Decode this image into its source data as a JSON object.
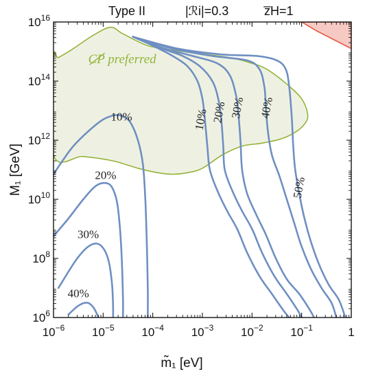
{
  "title": {
    "model": "Type II",
    "r_param": "|ℛi|=0.3",
    "z_param": "z̅H=1"
  },
  "colors": {
    "contour": "#6f8fc2",
    "cp_fill": "#eef1e2",
    "cp_border": "#94b33a",
    "excluded_fill": "#f6c9c3",
    "excluded_border": "#e25b45"
  },
  "chart_data": {
    "type": "contour",
    "xlabel": "m̃₁ [eV]",
    "ylabel": "M₁ [GeV]",
    "xscale": "log",
    "yscale": "log",
    "xlim": [
      1e-06,
      1
    ],
    "ylim": [
      1000000.0,
      1e+16
    ],
    "grid": false,
    "x_ticks": [
      {
        "value": 1e-06,
        "base": "10",
        "exp": "−6"
      },
      {
        "value": 1e-05,
        "base": "10",
        "exp": "−5"
      },
      {
        "value": 0.0001,
        "base": "10",
        "exp": "−4"
      },
      {
        "value": 0.001,
        "base": "10",
        "exp": "−3"
      },
      {
        "value": 0.01,
        "base": "10",
        "exp": "−2"
      },
      {
        "value": 0.1,
        "base": "10",
        "exp": "−1"
      },
      {
        "value": 1,
        "base": "1",
        "exp": ""
      }
    ],
    "y_ticks": [
      {
        "value": 1000000.0,
        "base": "10",
        "exp": "6"
      },
      {
        "value": 100000000.0,
        "base": "10",
        "exp": "8"
      },
      {
        "value": 10000000000.0,
        "base": "10",
        "exp": "10"
      },
      {
        "value": 1000000000000.0,
        "base": "10",
        "exp": "12"
      },
      {
        "value": 100000000000000.0,
        "base": "10",
        "exp": "14"
      },
      {
        "value": 1e+16,
        "base": "10",
        "exp": "16"
      }
    ],
    "regions": [
      {
        "name": "CP preferred",
        "label": "CP preferred",
        "label_at": [
          -5.3,
          14.6
        ],
        "points": [
          [
            -6.0,
            11.5
          ],
          [
            -5.4,
            11.45
          ],
          [
            -4.8,
            11.3
          ],
          [
            -4.3,
            11.05
          ],
          [
            -3.9,
            10.9
          ],
          [
            -3.6,
            10.85
          ],
          [
            -3.3,
            10.9
          ],
          [
            -3.0,
            11.05
          ],
          [
            -2.6,
            11.5
          ],
          [
            -2.2,
            11.8
          ],
          [
            -1.8,
            11.9
          ],
          [
            -1.4,
            12.05
          ],
          [
            -1.1,
            12.3
          ],
          [
            -0.92,
            12.6
          ],
          [
            -0.88,
            12.9
          ],
          [
            -1.0,
            13.4
          ],
          [
            -1.3,
            13.9
          ],
          [
            -1.7,
            14.4
          ],
          [
            -2.0,
            14.6
          ],
          [
            -2.4,
            14.78
          ],
          [
            -3.0,
            14.92
          ],
          [
            -3.6,
            15.05
          ],
          [
            -4.1,
            15.2
          ],
          [
            -4.6,
            15.6
          ],
          [
            -4.85,
            15.82
          ],
          [
            -5.2,
            15.55
          ],
          [
            -5.6,
            15.1
          ],
          [
            -5.9,
            14.8
          ],
          [
            -6.0,
            14.75
          ]
        ]
      },
      {
        "name": "excluded",
        "label": "",
        "points": [
          [
            -1.0,
            16.0
          ],
          [
            0.0,
            16.0
          ],
          [
            0.0,
            15.1
          ],
          [
            -0.7,
            15.7
          ]
        ]
      }
    ],
    "contours": [
      {
        "level": "10%",
        "label_at": [
          -4.63,
          12.8
        ],
        "points": [
          [
            -6.0,
            10.85
          ],
          [
            -5.8,
            11.35
          ],
          [
            -5.6,
            11.8
          ],
          [
            -5.3,
            12.3
          ],
          [
            -5.0,
            12.7
          ],
          [
            -4.75,
            12.85
          ],
          [
            -4.6,
            12.8
          ],
          [
            -4.45,
            12.6
          ],
          [
            -4.3,
            12.0
          ],
          [
            -4.2,
            11.2
          ],
          [
            -4.15,
            10.0
          ],
          [
            -4.12,
            8.5
          ],
          [
            -4.1,
            7.0
          ],
          [
            -4.1,
            6.0
          ]
        ]
      },
      {
        "level": "20%",
        "label_at": [
          -4.95,
          10.82
        ],
        "points": [
          [
            -6.0,
            8.75
          ],
          [
            -5.7,
            9.35
          ],
          [
            -5.4,
            10.0
          ],
          [
            -5.15,
            10.45
          ],
          [
            -4.95,
            10.55
          ],
          [
            -4.82,
            10.4
          ],
          [
            -4.72,
            9.9
          ],
          [
            -4.66,
            9.0
          ],
          [
            -4.62,
            7.8
          ],
          [
            -4.6,
            6.6
          ],
          [
            -4.6,
            6.0
          ]
        ]
      },
      {
        "level": "30%",
        "label_at": [
          -5.3,
          8.82
        ],
        "points": [
          [
            -5.9,
            7.0
          ],
          [
            -5.7,
            7.55
          ],
          [
            -5.5,
            8.05
          ],
          [
            -5.3,
            8.4
          ],
          [
            -5.12,
            8.5
          ],
          [
            -4.98,
            8.3
          ],
          [
            -4.88,
            7.85
          ],
          [
            -4.82,
            7.1
          ],
          [
            -4.8,
            6.4
          ],
          [
            -4.8,
            6.0
          ]
        ]
      },
      {
        "level": "40%",
        "label_at": [
          -5.5,
          6.82
        ],
        "points": [
          [
            -5.7,
            6.1
          ],
          [
            -5.5,
            6.4
          ],
          [
            -5.32,
            6.5
          ],
          [
            -5.2,
            6.35
          ],
          [
            -5.12,
            6.1
          ],
          [
            -5.1,
            6.0
          ]
        ]
      },
      {
        "level": "10%",
        "label_at": [
          -3.04,
          12.7
        ],
        "points": [
          [
            -4.4,
            15.5
          ],
          [
            -4.0,
            15.2
          ],
          [
            -3.6,
            14.85
          ],
          [
            -3.3,
            14.5
          ],
          [
            -3.1,
            14.0
          ],
          [
            -3.0,
            13.4
          ],
          [
            -2.95,
            12.7
          ],
          [
            -2.9,
            11.8
          ],
          [
            -2.85,
            11.0
          ],
          [
            -2.7,
            10.3
          ],
          [
            -2.5,
            9.6
          ],
          [
            -2.3,
            9.0
          ],
          [
            -2.1,
            8.2
          ],
          [
            -1.85,
            7.4
          ],
          [
            -1.6,
            6.8
          ],
          [
            -1.35,
            6.2
          ],
          [
            -1.25,
            6.0
          ]
        ]
      },
      {
        "level": "20%",
        "label_at": [
          -2.67,
          12.95
        ],
        "points": [
          [
            -4.4,
            15.5
          ],
          [
            -3.9,
            15.15
          ],
          [
            -3.4,
            14.85
          ],
          [
            -3.05,
            14.5
          ],
          [
            -2.8,
            14.0
          ],
          [
            -2.68,
            13.4
          ],
          [
            -2.62,
            12.7
          ],
          [
            -2.58,
            11.8
          ],
          [
            -2.55,
            11.0
          ],
          [
            -2.4,
            10.3
          ],
          [
            -2.2,
            9.6
          ],
          [
            -2.0,
            9.0
          ],
          [
            -1.8,
            8.2
          ],
          [
            -1.55,
            7.4
          ],
          [
            -1.3,
            6.8
          ],
          [
            -1.1,
            6.3
          ],
          [
            -1.0,
            6.0
          ]
        ]
      },
      {
        "level": "30%",
        "label_at": [
          -2.3,
          13.1
        ],
        "points": [
          [
            -4.4,
            15.5
          ],
          [
            -3.8,
            15.12
          ],
          [
            -3.2,
            14.85
          ],
          [
            -2.7,
            14.6
          ],
          [
            -2.45,
            14.2
          ],
          [
            -2.32,
            13.5
          ],
          [
            -2.27,
            12.8
          ],
          [
            -2.23,
            11.9
          ],
          [
            -2.2,
            11.0
          ],
          [
            -2.1,
            10.2
          ],
          [
            -1.92,
            9.5
          ],
          [
            -1.72,
            8.8
          ],
          [
            -1.52,
            8.0
          ],
          [
            -1.3,
            7.3
          ],
          [
            -1.05,
            6.8
          ],
          [
            -0.85,
            6.3
          ],
          [
            -0.75,
            6.0
          ]
        ]
      },
      {
        "level": "40%",
        "label_at": [
          -1.71,
          13.1
        ],
        "points": [
          [
            -4.4,
            15.5
          ],
          [
            -3.6,
            15.1
          ],
          [
            -2.8,
            14.85
          ],
          [
            -2.1,
            14.7
          ],
          [
            -1.85,
            14.4
          ],
          [
            -1.75,
            13.8
          ],
          [
            -1.72,
            13.1
          ],
          [
            -1.68,
            12.3
          ],
          [
            -1.6,
            11.5
          ],
          [
            -1.45,
            10.8
          ],
          [
            -1.3,
            10.0
          ],
          [
            -1.15,
            9.2
          ],
          [
            -1.0,
            8.4
          ],
          [
            -0.8,
            7.6
          ],
          [
            -0.6,
            7.0
          ],
          [
            -0.4,
            6.5
          ],
          [
            -0.3,
            6.0
          ]
        ]
      },
      {
        "level": "50%",
        "label_at": [
          -1.06,
          10.4
        ],
        "points": [
          [
            -4.4,
            15.5
          ],
          [
            -3.5,
            15.1
          ],
          [
            -2.6,
            14.9
          ],
          [
            -1.9,
            14.85
          ],
          [
            -1.5,
            14.7
          ],
          [
            -1.32,
            14.4
          ],
          [
            -1.25,
            13.8
          ],
          [
            -1.2,
            12.8
          ],
          [
            -1.17,
            11.8
          ],
          [
            -1.13,
            11.0
          ],
          [
            -1.05,
            10.2
          ],
          [
            -0.95,
            9.4
          ],
          [
            -0.82,
            8.6
          ],
          [
            -0.65,
            7.8
          ],
          [
            -0.45,
            7.1
          ],
          [
            -0.25,
            6.6
          ],
          [
            -0.12,
            6.0
          ]
        ]
      }
    ]
  }
}
